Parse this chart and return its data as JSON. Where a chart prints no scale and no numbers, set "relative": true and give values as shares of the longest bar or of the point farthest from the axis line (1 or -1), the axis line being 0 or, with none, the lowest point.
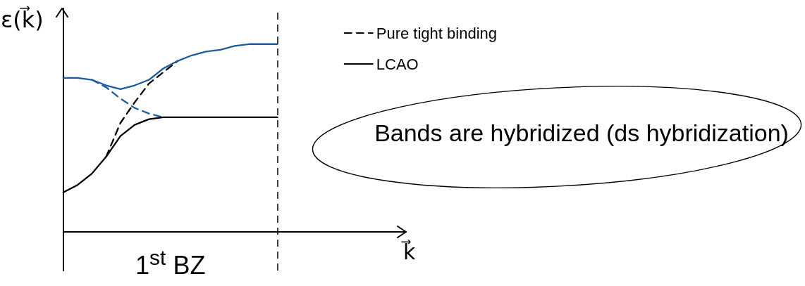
{
  "chart_data": {
    "type": "line",
    "relative": true,
    "xlabel": "k⃗",
    "ylabel": "ε(k⃗)",
    "categories": [
      null,
      null,
      null,
      null,
      null,
      null,
      null,
      null,
      null,
      null,
      null,
      null,
      null,
      null,
      null,
      null,
      null,
      null,
      null,
      null,
      null,
      null,
      null,
      null,
      null
    ],
    "series": [
      {
        "name": "Pure tight binding",
        "color": "#000000",
        "line_style": "dashed",
        "values": [
          null,
          null,
          null,
          0.4,
          0.58,
          0.69,
          0.79,
          0.85,
          0.91,
          null,
          null,
          null,
          null,
          null,
          null,
          null,
          null,
          null,
          null,
          null,
          null,
          null,
          null,
          null,
          null
        ]
      },
      {
        "color": "#1e5aa0",
        "line_style": "dashed",
        "values": [
          null,
          null,
          0.81,
          0.77,
          0.71,
          0.66,
          0.63,
          0.61,
          null,
          null,
          null,
          null,
          null,
          null,
          null,
          null,
          null,
          null,
          null,
          null,
          null,
          null,
          null,
          null,
          null
        ]
      },
      {
        "name": "LCAO",
        "color": "#000000",
        "line_style": "solid",
        "values": [
          0.21,
          0.25,
          0.31,
          0.4,
          0.51,
          0.57,
          0.6,
          0.61,
          0.61,
          0.61,
          0.61,
          0.61,
          0.61,
          0.61,
          0.61,
          0.61,
          null,
          null,
          null,
          null,
          null,
          null,
          null,
          null,
          null
        ]
      },
      {
        "color": "#1e5aa0",
        "line_style": "solid",
        "values": [
          0.82,
          0.82,
          0.81,
          0.78,
          0.76,
          0.78,
          0.81,
          0.87,
          0.91,
          0.94,
          0.96,
          0.97,
          0.99,
          1,
          1,
          1,
          null,
          null,
          null,
          null,
          null,
          null,
          null,
          null,
          null
        ]
      }
    ],
    "ref_lines": [
      {
        "axis": "x",
        "line_style": "dashed",
        "color": "#000000"
      }
    ],
    "legend": "top right",
    "marker": "none",
    "annotations": [
      "1$^{st}$ BZ",
      "Bands are hybridized (ds hybridization)"
    ]
  }
}
